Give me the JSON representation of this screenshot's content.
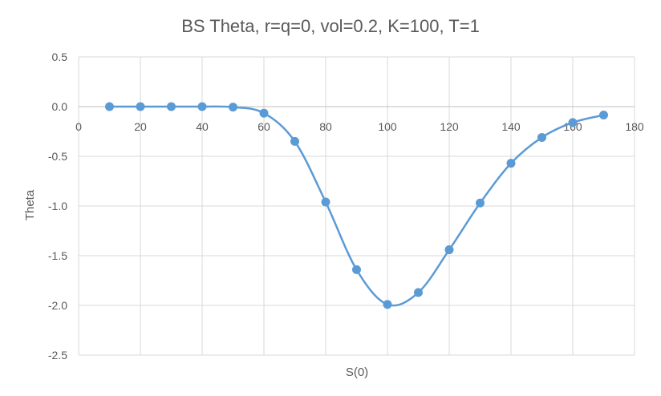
{
  "chart_data": {
    "type": "scatter",
    "title": "BS Theta, r=q=0, vol=0.2, K=100, T=1",
    "xlabel": "S(0)",
    "ylabel": "Theta",
    "xlim": [
      0,
      180
    ],
    "ylim": [
      -2.5,
      0.5
    ],
    "x_ticks": [
      0,
      20,
      40,
      60,
      80,
      100,
      120,
      140,
      160,
      180
    ],
    "y_ticks": [
      0.5,
      0.0,
      -0.5,
      -1.0,
      -1.5,
      -2.0,
      -2.5
    ],
    "x_tick_labels": [
      "0",
      "20",
      "40",
      "60",
      "80",
      "100",
      "120",
      "140",
      "160",
      "180"
    ],
    "y_tick_labels": [
      "0.5",
      "0.0",
      "-0.5",
      "-1.0",
      "-1.5",
      "-2.0",
      "-2.5"
    ],
    "grid": true,
    "smooth_line": true,
    "series_color": "#5b9bd5",
    "series": [
      {
        "x": [
          10,
          20,
          30,
          40,
          50,
          60,
          70,
          80,
          90,
          100,
          110,
          120,
          130,
          140,
          150,
          160,
          170
        ],
        "y": [
          0.0,
          0.0,
          0.0,
          0.0,
          -0.005,
          -0.066,
          -0.35,
          -0.96,
          -1.64,
          -1.99,
          -1.87,
          -1.44,
          -0.97,
          -0.57,
          -0.31,
          -0.16,
          -0.085
        ]
      }
    ]
  }
}
